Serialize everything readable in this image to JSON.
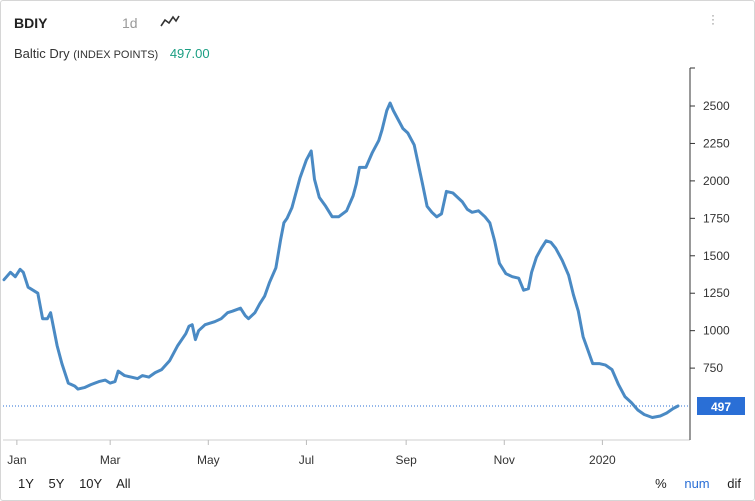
{
  "header": {
    "ticker": "BDIY",
    "interval": "1d",
    "chart_type_icon": "line-chart-icon",
    "menu_icon": "kebab-menu-icon"
  },
  "subheader": {
    "name": "Baltic Dry",
    "unit": "(INDEX POINTS)",
    "last_value": "497.00"
  },
  "range_buttons": [
    "1Y",
    "5Y",
    "10Y",
    "All"
  ],
  "mode_buttons": [
    "%",
    "num",
    "dif"
  ],
  "active_mode": "num",
  "colors": {
    "line": "#4a8ac4",
    "last_value_badge": "#2a6fd6",
    "last_value_text": "#1a9e82",
    "axis": "#333333",
    "grid_dotted": "#2a6fd6"
  },
  "chart_data": {
    "type": "line",
    "title": "",
    "xlabel": "",
    "ylabel": "",
    "ylim": [
      0,
      2600
    ],
    "y_ticks": [
      2500,
      2250,
      2000,
      1750,
      1500,
      1250,
      1000,
      750
    ],
    "x_ticks": [
      {
        "label": "Jan",
        "x": 1
      },
      {
        "label": "Mar",
        "x": 59
      },
      {
        "label": "May",
        "x": 120
      },
      {
        "label": "Jul",
        "x": 181
      },
      {
        "label": "Sep",
        "x": 243
      },
      {
        "label": "Nov",
        "x": 304
      },
      {
        "label": "2020",
        "x": 365
      }
    ],
    "last_value_label": "497",
    "last_value": 497,
    "series": [
      {
        "points": [
          [
            -7,
            1340
          ],
          [
            -3,
            1390
          ],
          [
            0,
            1360
          ],
          [
            3,
            1410
          ],
          [
            5,
            1390
          ],
          [
            8,
            1290
          ],
          [
            11,
            1270
          ],
          [
            14,
            1250
          ],
          [
            17,
            1080
          ],
          [
            20,
            1080
          ],
          [
            22,
            1120
          ],
          [
            26,
            900
          ],
          [
            29,
            780
          ],
          [
            33,
            650
          ],
          [
            37,
            630
          ],
          [
            39,
            610
          ],
          [
            43,
            620
          ],
          [
            47,
            640
          ],
          [
            52,
            660
          ],
          [
            56,
            670
          ],
          [
            59,
            650
          ],
          [
            62,
            660
          ],
          [
            64,
            730
          ],
          [
            68,
            700
          ],
          [
            72,
            690
          ],
          [
            76,
            680
          ],
          [
            79,
            700
          ],
          [
            83,
            690
          ],
          [
            87,
            720
          ],
          [
            91,
            740
          ],
          [
            96,
            800
          ],
          [
            101,
            900
          ],
          [
            106,
            980
          ],
          [
            108,
            1030
          ],
          [
            110,
            1040
          ],
          [
            112,
            940
          ],
          [
            114,
            1000
          ],
          [
            118,
            1040
          ],
          [
            124,
            1060
          ],
          [
            128,
            1080
          ],
          [
            132,
            1120
          ],
          [
            135,
            1130
          ],
          [
            140,
            1150
          ],
          [
            143,
            1100
          ],
          [
            145,
            1080
          ],
          [
            149,
            1120
          ],
          [
            152,
            1180
          ],
          [
            155,
            1230
          ],
          [
            158,
            1320
          ],
          [
            162,
            1420
          ],
          [
            165,
            1610
          ],
          [
            167,
            1720
          ],
          [
            169,
            1750
          ],
          [
            172,
            1820
          ],
          [
            177,
            2020
          ],
          [
            181,
            2140
          ],
          [
            184,
            2200
          ],
          [
            186,
            2010
          ],
          [
            189,
            1890
          ],
          [
            193,
            1830
          ],
          [
            197,
            1760
          ],
          [
            201,
            1760
          ],
          [
            206,
            1800
          ],
          [
            210,
            1900
          ],
          [
            212,
            1980
          ],
          [
            214,
            2090
          ],
          [
            218,
            2090
          ],
          [
            222,
            2190
          ],
          [
            226,
            2270
          ],
          [
            228,
            2340
          ],
          [
            231,
            2470
          ],
          [
            233,
            2520
          ],
          [
            235,
            2470
          ],
          [
            238,
            2410
          ],
          [
            241,
            2350
          ],
          [
            244,
            2320
          ],
          [
            248,
            2240
          ],
          [
            250,
            2140
          ],
          [
            253,
            1990
          ],
          [
            256,
            1830
          ],
          [
            259,
            1790
          ],
          [
            262,
            1760
          ],
          [
            265,
            1780
          ],
          [
            268,
            1930
          ],
          [
            272,
            1920
          ],
          [
            275,
            1890
          ],
          [
            278,
            1860
          ],
          [
            281,
            1810
          ],
          [
            284,
            1790
          ],
          [
            288,
            1800
          ],
          [
            292,
            1760
          ],
          [
            295,
            1720
          ],
          [
            298,
            1600
          ],
          [
            301,
            1450
          ],
          [
            305,
            1380
          ],
          [
            309,
            1360
          ],
          [
            313,
            1350
          ],
          [
            316,
            1270
          ],
          [
            319,
            1280
          ],
          [
            321,
            1390
          ],
          [
            324,
            1490
          ],
          [
            327,
            1550
          ],
          [
            330,
            1600
          ],
          [
            333,
            1590
          ],
          [
            336,
            1550
          ],
          [
            340,
            1470
          ],
          [
            344,
            1370
          ],
          [
            347,
            1240
          ],
          [
            350,
            1130
          ],
          [
            353,
            960
          ],
          [
            356,
            870
          ],
          [
            359,
            780
          ],
          [
            363,
            780
          ],
          [
            367,
            770
          ],
          [
            371,
            740
          ],
          [
            375,
            640
          ],
          [
            379,
            560
          ],
          [
            383,
            520
          ],
          [
            387,
            470
          ],
          [
            391,
            440
          ],
          [
            396,
            420
          ],
          [
            401,
            430
          ],
          [
            405,
            450
          ],
          [
            409,
            480
          ],
          [
            412,
            497
          ]
        ]
      }
    ]
  }
}
